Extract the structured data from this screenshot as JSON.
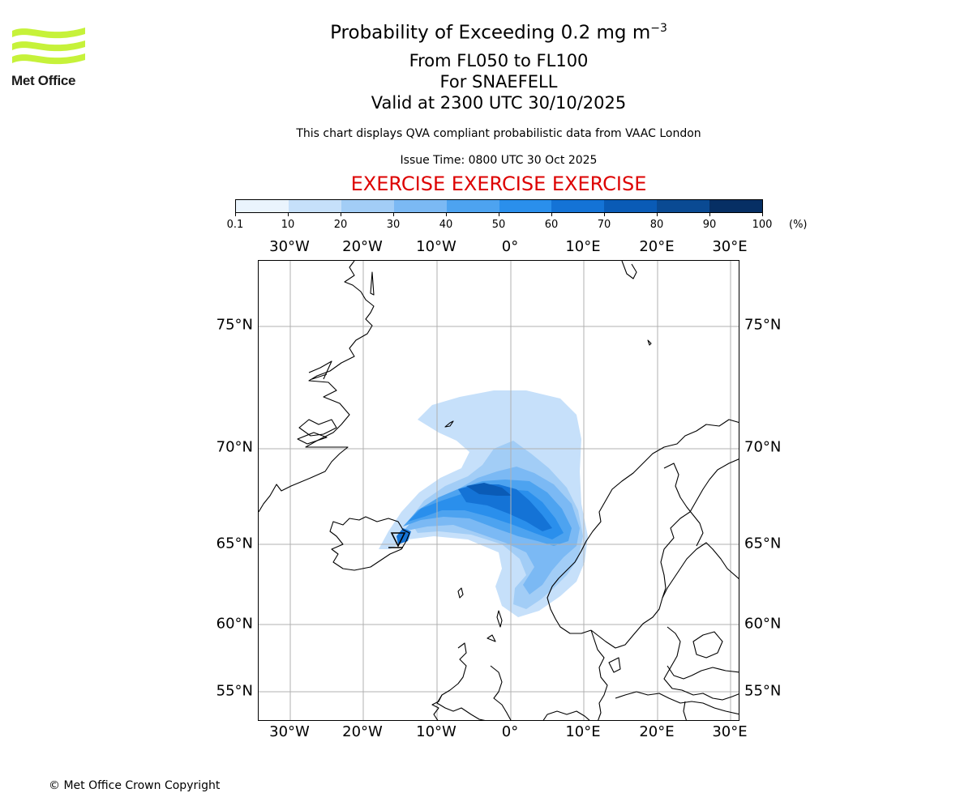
{
  "logo": {
    "text": "Met Office",
    "colors": {
      "waves": "#c6f23a",
      "text": "#1a1a1a"
    }
  },
  "header": {
    "title_main": "Probability of Exceeding 0.2 mg m",
    "title_exp": "−3",
    "subtitle_levels": "From FL050 to FL100",
    "subtitle_volcano": "For SNAEFELL",
    "subtitle_valid": "Valid at 2300 UTC 30/10/2025",
    "disclaimer": "This chart displays QVA compliant probabilistic data from VAAC London",
    "issue_time": "Issue Time: 0800 UTC 30 Oct 2025",
    "exercise_banner": "EXERCISE EXERCISE EXERCISE",
    "exercise_color": "#dd0000"
  },
  "colorbar": {
    "ticks": [
      "0.1",
      "10",
      "20",
      "30",
      "40",
      "50",
      "60",
      "70",
      "80",
      "90",
      "100"
    ],
    "unit": "(%)",
    "colors": [
      "#eaf4fd",
      "#c6e0fa",
      "#a2cdf6",
      "#7bb9f4",
      "#4da3f0",
      "#2a8fec",
      "#1473d6",
      "#0a5bb6",
      "#0a4a93",
      "#062f64"
    ]
  },
  "map": {
    "lon_labels": [
      "30°W",
      "20°W",
      "10°W",
      "0°",
      "10°E",
      "20°E",
      "30°E"
    ],
    "lat_labels": [
      "75°N",
      "70°N",
      "65°N",
      "60°N",
      "55°N"
    ],
    "volcano_marker": "triangle-icon"
  },
  "footer": {
    "copyright": "© Met Office Crown Copyright"
  }
}
